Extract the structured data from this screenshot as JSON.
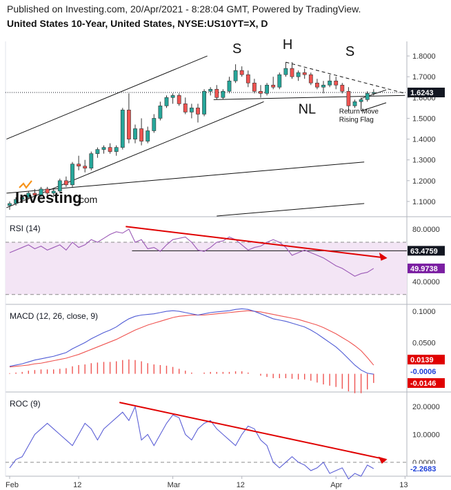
{
  "header": {
    "published": "Published on Investing.com, 20/Apr/2021 - 8:28:04 GMT, Powered by TradingView.",
    "instrument": "United States 10-Year, United States, NYSE:US10YT=X, D"
  },
  "watermark": {
    "brand": "Investing",
    "suffix": ".com"
  },
  "colors": {
    "up": "#26a69a",
    "down": "#ef5350",
    "rsi": "#9b59b6",
    "rsi_band": "#f3e5f5",
    "macd": "#4f5bd5",
    "signal": "#ef5350",
    "roc": "#5b5fd6",
    "trend_red": "#e00000",
    "badge_dark": "#131722",
    "badge_rsi": "#7b1fa2",
    "badge_red": "#e00000",
    "badge_blue": "#1e40d8"
  },
  "chart_data": [
    {
      "type": "candlestick",
      "panel": "price",
      "ylim": [
        1.03,
        1.87
      ],
      "yticks": [
        "1.8000",
        "1.7000",
        "1.6000",
        "1.5000",
        "1.4000",
        "1.3000",
        "1.2000",
        "1.1000"
      ],
      "last_value_label": "1.6243",
      "last_value": 1.6243,
      "annotations": {
        "left_shoulder": "S",
        "head": "H",
        "right_shoulder": "S",
        "neckline": "NL",
        "pattern": [
          "Return Move",
          "Rising Flag"
        ]
      },
      "candles": [
        [
          1.08,
          1.1,
          1.06,
          1.09
        ],
        [
          1.09,
          1.12,
          1.08,
          1.11
        ],
        [
          1.11,
          1.13,
          1.1,
          1.12
        ],
        [
          1.12,
          1.15,
          1.11,
          1.14
        ],
        [
          1.14,
          1.16,
          1.12,
          1.13
        ],
        [
          1.13,
          1.17,
          1.12,
          1.16
        ],
        [
          1.16,
          1.17,
          1.13,
          1.14
        ],
        [
          1.14,
          1.16,
          1.12,
          1.15
        ],
        [
          1.15,
          1.21,
          1.14,
          1.2
        ],
        [
          1.2,
          1.22,
          1.17,
          1.18
        ],
        [
          1.18,
          1.29,
          1.17,
          1.28
        ],
        [
          1.28,
          1.32,
          1.25,
          1.27
        ],
        [
          1.27,
          1.3,
          1.24,
          1.26
        ],
        [
          1.26,
          1.34,
          1.25,
          1.33
        ],
        [
          1.33,
          1.36,
          1.31,
          1.35
        ],
        [
          1.35,
          1.37,
          1.33,
          1.36
        ],
        [
          1.36,
          1.38,
          1.33,
          1.34
        ],
        [
          1.34,
          1.37,
          1.32,
          1.36
        ],
        [
          1.36,
          1.55,
          1.35,
          1.54
        ],
        [
          1.54,
          1.62,
          1.38,
          1.4
        ],
        [
          1.4,
          1.47,
          1.38,
          1.45
        ],
        [
          1.45,
          1.5,
          1.37,
          1.39
        ],
        [
          1.39,
          1.46,
          1.38,
          1.44
        ],
        [
          1.44,
          1.52,
          1.43,
          1.5
        ],
        [
          1.5,
          1.58,
          1.49,
          1.56
        ],
        [
          1.56,
          1.61,
          1.55,
          1.6
        ],
        [
          1.6,
          1.62,
          1.57,
          1.61
        ],
        [
          1.61,
          1.62,
          1.56,
          1.57
        ],
        [
          1.57,
          1.6,
          1.52,
          1.53
        ],
        [
          1.53,
          1.57,
          1.5,
          1.55
        ],
        [
          1.55,
          1.57,
          1.48,
          1.52
        ],
        [
          1.52,
          1.64,
          1.51,
          1.63
        ],
        [
          1.63,
          1.65,
          1.61,
          1.64
        ],
        [
          1.64,
          1.66,
          1.59,
          1.6
        ],
        [
          1.6,
          1.64,
          1.59,
          1.63
        ],
        [
          1.63,
          1.7,
          1.62,
          1.68
        ],
        [
          1.68,
          1.76,
          1.67,
          1.73
        ],
        [
          1.73,
          1.75,
          1.7,
          1.71
        ],
        [
          1.71,
          1.73,
          1.65,
          1.67
        ],
        [
          1.67,
          1.69,
          1.62,
          1.63
        ],
        [
          1.63,
          1.66,
          1.6,
          1.62
        ],
        [
          1.62,
          1.67,
          1.61,
          1.66
        ],
        [
          1.66,
          1.7,
          1.64,
          1.65
        ],
        [
          1.65,
          1.72,
          1.64,
          1.71
        ],
        [
          1.71,
          1.77,
          1.7,
          1.74
        ],
        [
          1.74,
          1.77,
          1.69,
          1.7
        ],
        [
          1.7,
          1.73,
          1.68,
          1.72
        ],
        [
          1.72,
          1.74,
          1.69,
          1.71
        ],
        [
          1.71,
          1.72,
          1.66,
          1.67
        ],
        [
          1.67,
          1.69,
          1.64,
          1.65
        ],
        [
          1.65,
          1.68,
          1.62,
          1.66
        ],
        [
          1.66,
          1.71,
          1.65,
          1.68
        ],
        [
          1.68,
          1.7,
          1.64,
          1.66
        ],
        [
          1.66,
          1.67,
          1.62,
          1.63
        ],
        [
          1.63,
          1.65,
          1.53,
          1.56
        ],
        [
          1.56,
          1.59,
          1.55,
          1.58
        ],
        [
          1.58,
          1.6,
          1.56,
          1.59
        ],
        [
          1.59,
          1.63,
          1.58,
          1.62
        ],
        [
          1.62,
          1.64,
          1.61,
          1.6243
        ]
      ]
    },
    {
      "type": "line",
      "panel": "rsi",
      "title": "RSI (14)",
      "ylim": [
        23,
        89
      ],
      "yticks": [
        "80.0000",
        "40.0000"
      ],
      "bands": [
        70,
        30
      ],
      "horizontal_level_label": "63.4759",
      "horizontal_level": 63.4759,
      "last_value_label": "49.9738",
      "values": [
        62,
        64,
        66,
        68,
        65,
        67,
        64,
        66,
        68,
        64,
        70,
        66,
        68,
        72,
        70,
        73,
        76,
        78,
        77,
        80,
        70,
        72,
        65,
        66,
        63,
        68,
        72,
        73,
        74,
        70,
        64,
        63,
        66,
        70,
        71,
        74,
        72,
        68,
        64,
        66,
        67,
        70,
        72,
        70,
        66,
        60,
        62,
        64,
        62,
        60,
        58,
        55,
        52,
        50,
        47,
        44,
        46,
        47,
        49.97
      ]
    },
    {
      "type": "line",
      "panel": "macd",
      "title": "MACD (12, 26, close, 9)",
      "ylim": [
        -0.028,
        0.11
      ],
      "yticks": [
        "0.1000",
        "0.0500"
      ],
      "value_labels": [
        "0.0139",
        "-0.0006",
        "-0.0146"
      ],
      "series": [
        {
          "values": [
            0.012,
            0.014,
            0.016,
            0.019,
            0.022,
            0.024,
            0.026,
            0.028,
            0.031,
            0.034,
            0.04,
            0.045,
            0.05,
            0.056,
            0.061,
            0.066,
            0.07,
            0.075,
            0.082,
            0.088,
            0.092,
            0.094,
            0.095,
            0.096,
            0.098,
            0.1,
            0.101,
            0.1,
            0.098,
            0.096,
            0.094,
            0.096,
            0.098,
            0.099,
            0.1,
            0.101,
            0.103,
            0.104,
            0.103,
            0.1,
            0.096,
            0.092,
            0.088,
            0.086,
            0.084,
            0.081,
            0.078,
            0.075,
            0.07,
            0.064,
            0.057,
            0.05,
            0.043,
            0.034,
            0.024,
            0.014,
            0.006,
            0.001,
            -0.0006
          ]
        },
        {
          "values": [
            0.011,
            0.012,
            0.013,
            0.014,
            0.016,
            0.017,
            0.019,
            0.021,
            0.023,
            0.025,
            0.028,
            0.031,
            0.035,
            0.039,
            0.043,
            0.047,
            0.051,
            0.055,
            0.06,
            0.065,
            0.07,
            0.074,
            0.078,
            0.081,
            0.084,
            0.087,
            0.09,
            0.092,
            0.093,
            0.094,
            0.094,
            0.094,
            0.095,
            0.096,
            0.097,
            0.098,
            0.099,
            0.1,
            0.101,
            0.1,
            0.099,
            0.097,
            0.095,
            0.093,
            0.091,
            0.089,
            0.087,
            0.084,
            0.081,
            0.078,
            0.074,
            0.069,
            0.064,
            0.058,
            0.052,
            0.045,
            0.037,
            0.026,
            0.0139
          ]
        }
      ],
      "histogram": [
        0.001,
        0.002,
        0.003,
        0.005,
        0.006,
        0.007,
        0.007,
        0.007,
        0.008,
        0.009,
        0.012,
        0.014,
        0.015,
        0.017,
        0.018,
        0.019,
        0.019,
        0.02,
        0.022,
        0.023,
        0.022,
        0.02,
        0.017,
        0.015,
        0.014,
        0.013,
        0.011,
        0.008,
        0.005,
        0.002,
        0.0,
        0.002,
        0.003,
        0.003,
        0.003,
        0.003,
        0.004,
        0.004,
        0.002,
        0.0,
        -0.003,
        -0.005,
        -0.007,
        -0.007,
        -0.007,
        -0.008,
        -0.009,
        -0.009,
        -0.011,
        -0.014,
        -0.017,
        -0.019,
        -0.021,
        -0.024,
        -0.028,
        -0.031,
        -0.031,
        -0.025,
        -0.0146
      ]
    },
    {
      "type": "line",
      "panel": "roc",
      "title": "ROC (9)",
      "ylim": [
        -5,
        25
      ],
      "yticks": [
        "20.0000",
        "10.0000",
        "0.0000"
      ],
      "zero_line": 0,
      "last_value_label": "-2.2683",
      "values": [
        -2,
        1,
        2,
        6,
        10,
        12,
        14,
        12,
        10,
        8,
        6,
        10,
        14,
        12,
        8,
        12,
        14,
        16,
        18,
        15,
        20,
        8,
        10,
        6,
        10,
        14,
        17,
        16,
        10,
        8,
        12,
        14,
        15,
        12,
        10,
        8,
        6,
        10,
        13,
        12,
        8,
        6,
        0,
        -2,
        0,
        2,
        0,
        -1,
        -3,
        -2,
        0,
        -4,
        -3,
        -2,
        -6,
        -4,
        -5,
        -1,
        -2.2683
      ]
    }
  ],
  "x_axis": {
    "labels": [
      "Feb",
      "12",
      "Mar",
      "12",
      "Apr",
      "13"
    ],
    "positions": [
      0,
      11,
      26,
      37,
      52,
      63
    ]
  }
}
